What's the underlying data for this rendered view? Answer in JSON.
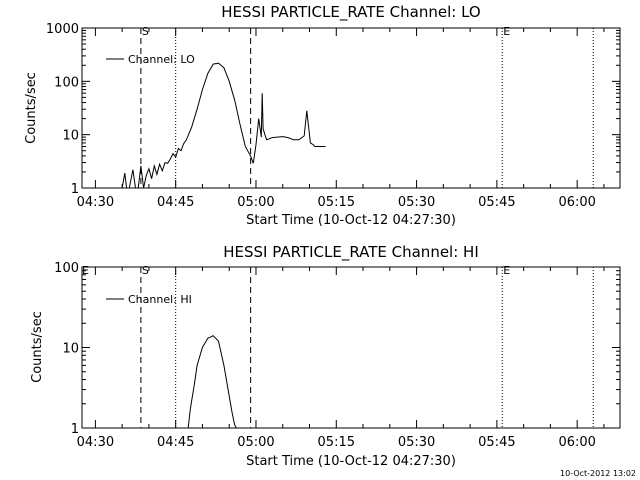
{
  "footer_stamp": "10-Oct-2012 13:02",
  "chart_data": [
    {
      "type": "line",
      "title": "HESSI PARTICLE_RATE Channel: LO",
      "xlabel": "Start Time (10-Oct-12 04:27:30)",
      "ylabel": "Counts/sec",
      "yscale": "log",
      "xlim": [
        "04:27:30",
        "06:08:00"
      ],
      "ylim": [
        1,
        1000
      ],
      "x_ticks": [
        "04:30",
        "04:45",
        "05:00",
        "05:15",
        "05:30",
        "05:45",
        "06:00"
      ],
      "y_ticks": [
        "1",
        "10",
        "100",
        "1000"
      ],
      "legend": "top-left",
      "series": [
        {
          "name": "Channel: LO",
          "x": [
            "04:35:00",
            "04:35:30",
            "04:35:50",
            "04:36:20",
            "04:37:00",
            "04:37:30",
            "04:38:00",
            "04:38:30",
            "04:39:00",
            "04:39:30",
            "04:40:00",
            "04:40:30",
            "04:41:00",
            "04:41:30",
            "04:42:00",
            "04:42:30",
            "04:43:00",
            "04:43:30",
            "04:44:00",
            "04:44:30",
            "04:45:00",
            "04:45:30",
            "04:46:00",
            "04:46:30",
            "04:47:00",
            "04:48:00",
            "04:49:00",
            "04:50:00",
            "04:51:00",
            "04:52:00",
            "04:53:00",
            "04:54:00",
            "04:55:00",
            "04:56:00",
            "04:57:00",
            "04:58:00",
            "04:59:00",
            "04:59:30",
            "05:00:00",
            "05:00:30",
            "05:01:00",
            "05:01:10",
            "05:01:20",
            "05:01:40",
            "05:02:00",
            "05:03:00",
            "05:04:00",
            "05:05:00",
            "05:06:00",
            "05:07:00",
            "05:08:00",
            "05:09:00",
            "05:09:30",
            "05:09:50",
            "05:10:10",
            "05:10:40",
            "05:11:00",
            "05:12:00",
            "05:13:00"
          ],
          "values": [
            1,
            1.9,
            1,
            1,
            2.2,
            1,
            1,
            2.6,
            1,
            1.7,
            2.3,
            1.5,
            2.6,
            1.8,
            2.8,
            2.1,
            3,
            2.9,
            3.5,
            4.4,
            3.8,
            5.5,
            5,
            6.8,
            8,
            14,
            30,
            70,
            140,
            210,
            220,
            180,
            100,
            45,
            16,
            6,
            4,
            2.9,
            6.5,
            20,
            9,
            60,
            13,
            10,
            8,
            8.8,
            9,
            9.2,
            8.8,
            8,
            8,
            9.5,
            28,
            14,
            7,
            6.5,
            6,
            6,
            6
          ]
        }
      ],
      "lines": [
        {
          "x": "04:38:30",
          "style": "dashed",
          "label": "S"
        },
        {
          "x": "04:45:00",
          "style": "dotted",
          "label": ""
        },
        {
          "x": "04:59:00",
          "style": "dashed",
          "label": ""
        },
        {
          "x": "05:46:00",
          "style": "dotted",
          "label": "E"
        },
        {
          "x": "06:03:00",
          "style": "dotted",
          "label": ""
        }
      ]
    },
    {
      "type": "line",
      "title": "HESSI PARTICLE_RATE Channel: HI",
      "xlabel": "Start Time (10-Oct-12 04:27:30)",
      "ylabel": "Counts/sec",
      "yscale": "log",
      "xlim": [
        "04:27:30",
        "06:08:00"
      ],
      "ylim": [
        1,
        100
      ],
      "x_ticks": [
        "04:30",
        "04:45",
        "05:00",
        "05:15",
        "05:30",
        "05:45",
        "06:00"
      ],
      "y_ticks": [
        "1",
        "10",
        "100"
      ],
      "legend": "top-left",
      "corner_label": "E",
      "series": [
        {
          "name": "Channel: HI",
          "x": [
            "04:47:20",
            "04:47:40",
            "04:48:00",
            "04:48:30",
            "04:49:00",
            "04:50:00",
            "04:51:00",
            "04:52:00",
            "04:53:00",
            "04:54:00",
            "04:55:00",
            "04:55:30",
            "04:56:00",
            "04:56:20"
          ],
          "values": [
            1,
            1.6,
            2.2,
            3.5,
            6,
            10,
            13,
            14,
            12,
            6,
            2.5,
            1.6,
            1.1,
            1
          ]
        }
      ],
      "lines": [
        {
          "x": "04:38:30",
          "style": "dashed",
          "label": "S"
        },
        {
          "x": "04:45:00",
          "style": "dotted",
          "label": ""
        },
        {
          "x": "04:59:00",
          "style": "dashed",
          "label": ""
        },
        {
          "x": "05:46:00",
          "style": "dotted",
          "label": "E"
        },
        {
          "x": "06:03:00",
          "style": "dotted",
          "label": ""
        }
      ]
    }
  ]
}
